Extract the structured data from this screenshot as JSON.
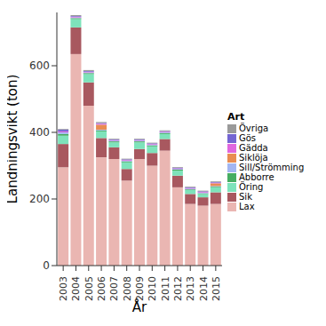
{
  "chart_data": {
    "type": "bar",
    "stacked": true,
    "grid": false,
    "legend": "right",
    "legend_title": "Art",
    "x_label": "År",
    "y_label": "Landningsvikt (ton)",
    "categories": [
      "2003",
      "2004",
      "2005",
      "2006",
      "2007",
      "2008",
      "2009",
      "2010",
      "2011",
      "2012",
      "2013",
      "2014",
      "2015"
    ],
    "ylim": [
      0,
      760
    ],
    "yticks": [
      0,
      200,
      400,
      600
    ],
    "series": [
      {
        "name": "Lax",
        "color": "#eab6b2",
        "values": [
          295,
          635,
          480,
          325,
          320,
          255,
          320,
          300,
          345,
          235,
          185,
          180,
          185
        ]
      },
      {
        "name": "Sik",
        "color": "#a8585f",
        "values": [
          70,
          80,
          70,
          58,
          35,
          35,
          30,
          38,
          35,
          35,
          30,
          25,
          35
        ]
      },
      {
        "name": "Öring",
        "color": "#7ee3bb",
        "values": [
          25,
          25,
          25,
          20,
          15,
          20,
          20,
          20,
          15,
          15,
          12,
          10,
          15
        ]
      },
      {
        "name": "Abborre",
        "color": "#46ad62",
        "values": [
          5,
          3,
          3,
          3,
          3,
          3,
          3,
          3,
          3,
          3,
          2,
          2,
          2
        ]
      },
      {
        "name": "Sill/Strömming",
        "color": "#a3b6f2",
        "values": [
          5,
          2,
          2,
          2,
          2,
          2,
          2,
          2,
          2,
          2,
          2,
          2,
          2
        ]
      },
      {
        "name": "Siklöja",
        "color": "#e98d52",
        "values": [
          0,
          0,
          0,
          15,
          0,
          0,
          0,
          0,
          0,
          0,
          0,
          0,
          8
        ]
      },
      {
        "name": "Gädda",
        "color": "#e067df",
        "values": [
          3,
          2,
          2,
          3,
          2,
          2,
          2,
          2,
          2,
          2,
          2,
          2,
          2
        ]
      },
      {
        "name": "Gös",
        "color": "#7465d2",
        "values": [
          5,
          2,
          2,
          2,
          2,
          2,
          2,
          2,
          2,
          2,
          2,
          2,
          2
        ]
      },
      {
        "name": "Övriga",
        "color": "#9a9a9a",
        "values": [
          2,
          3,
          3,
          3,
          2,
          2,
          2,
          2,
          2,
          2,
          2,
          2,
          2
        ]
      }
    ]
  }
}
